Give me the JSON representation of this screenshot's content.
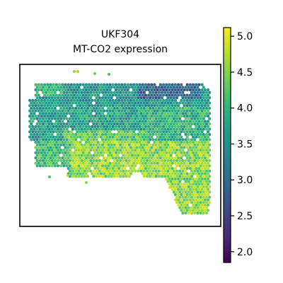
{
  "chart_data": {
    "type": "scatter",
    "title": "UKF304",
    "subtitle": "MT-CO2 expression",
    "xlabel": "",
    "ylabel": "",
    "grid": false,
    "legend": "none",
    "colorbar": {
      "range": [
        1.85,
        5.12
      ],
      "ticks": [
        2.0,
        2.5,
        3.0,
        3.5,
        4.0,
        4.5,
        5.0
      ],
      "tick_labels": [
        "2.0",
        "2.5",
        "3.0",
        "3.5",
        "4.0",
        "4.5",
        "5.0"
      ],
      "colormap": "viridis",
      "colormap_stops": [
        "#440154",
        "#482878",
        "#3e4989",
        "#31688e",
        "#26828e",
        "#1f9e89",
        "#35b779",
        "#6ece58",
        "#b5de2b",
        "#fde725"
      ]
    },
    "spots": {
      "description_of_pattern": "tissue section of hexagonal spots; top band mostly ~3.5 with dark ~2.5 patch near top right; lower region mostly 4.0–5.0; right-side lower extension 4.5–5.0"
    },
    "colors": {
      "frame": "#000000",
      "background": "#ffffff"
    }
  }
}
